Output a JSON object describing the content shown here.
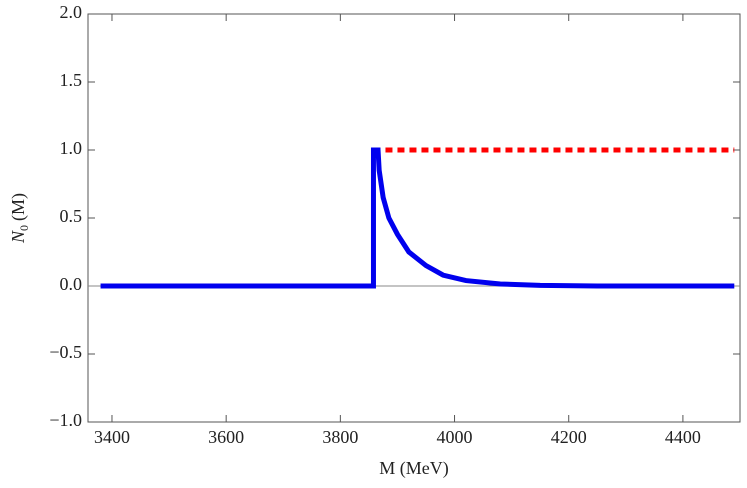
{
  "chart_data": {
    "type": "line",
    "xlabel": "M (MeV)",
    "ylabel": {
      "symbol": "N",
      "subscript": "0",
      "rest": "(M)"
    },
    "xlim": [
      3358,
      4500
    ],
    "ylim": [
      -1,
      2
    ],
    "xticks": [
      3400,
      3600,
      3800,
      4000,
      4200,
      4400
    ],
    "yticks": [
      {
        "value": -1,
        "label": "−1.0"
      },
      {
        "value": -0.5,
        "label": "−0.5"
      },
      {
        "value": 0,
        "label": "0.0"
      },
      {
        "value": 0.5,
        "label": "0.5"
      },
      {
        "value": 1,
        "label": "1.0"
      },
      {
        "value": 1.5,
        "label": "1.5"
      },
      {
        "value": 2,
        "label": "2.0"
      }
    ],
    "series": [
      {
        "color": "#ff0000",
        "dashed": true,
        "x": [
          3858,
          3866,
          4490
        ],
        "values": [
          1,
          1,
          1
        ]
      },
      {
        "color": "#0000ee",
        "dashed": false,
        "x": [
          3380,
          3858,
          3858,
          3866,
          3868,
          3875,
          3885,
          3900,
          3920,
          3950,
          3980,
          4020,
          4080,
          4150,
          4250,
          4490
        ],
        "values": [
          0,
          0,
          1,
          1,
          0.85,
          0.65,
          0.5,
          0.38,
          0.25,
          0.15,
          0.08,
          0.04,
          0.015,
          0.005,
          0,
          0
        ]
      }
    ]
  }
}
